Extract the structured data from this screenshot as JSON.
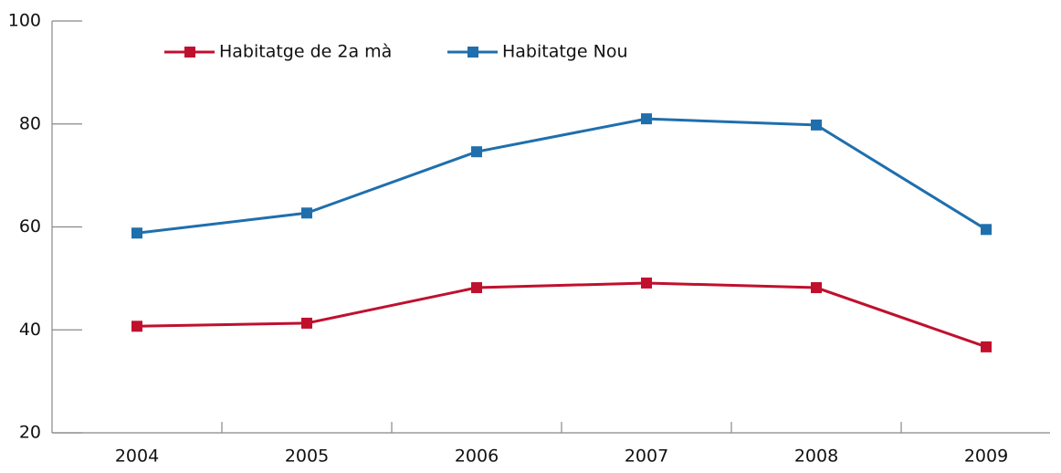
{
  "chart_data": {
    "type": "line",
    "categories": [
      "2004",
      "2005",
      "2006",
      "2007",
      "2008",
      "2009"
    ],
    "series": [
      {
        "name": "Habitatge de 2a mà",
        "color": "#c0102e",
        "values": [
          40.7,
          41.3,
          48.2,
          49.1,
          48.2,
          36.7
        ]
      },
      {
        "name": "Habitatge Nou",
        "color": "#1f6fad",
        "values": [
          58.8,
          62.7,
          74.6,
          81.0,
          79.8,
          59.5
        ]
      }
    ],
    "ylim": [
      20,
      100
    ],
    "yticks": [
      20,
      40,
      60,
      80,
      100
    ],
    "grid": false
  }
}
